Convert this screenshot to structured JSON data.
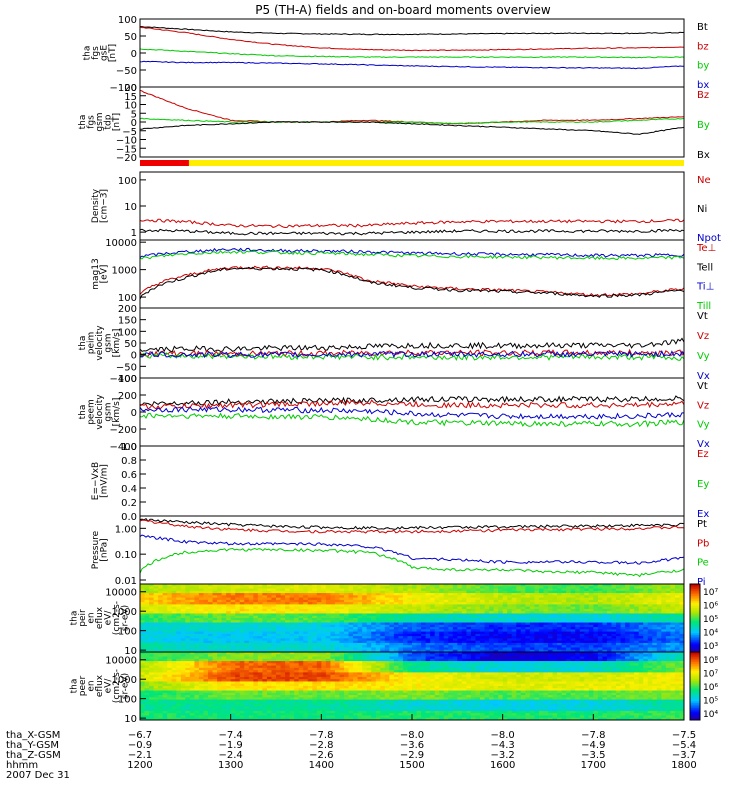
{
  "title": "P5 (TH-A) fields and on-board moments overview",
  "chart_data": [
    {
      "panel": "fgs_gse",
      "type": "line",
      "ylabel": [
        "tha",
        "fgs",
        "gsE",
        "[nT]"
      ],
      "yticks": [
        "100",
        "50",
        "0",
        "−50",
        "−100"
      ],
      "ylim": [
        -100,
        100
      ],
      "scale": "linear",
      "series": [
        {
          "name": "Bt",
          "color": "#000000",
          "values": [
            78,
            70,
            62,
            58,
            56,
            55,
            55,
            56,
            57,
            58,
            58,
            58,
            60
          ]
        },
        {
          "name": "bz",
          "color": "#cc0000",
          "values": [
            76,
            60,
            40,
            25,
            15,
            10,
            8,
            8,
            10,
            12,
            14,
            15,
            18
          ]
        },
        {
          "name": "by",
          "color": "#00cc00",
          "values": [
            12,
            5,
            -2,
            -8,
            -10,
            -12,
            -12,
            -12,
            -12,
            -12,
            -12,
            -13,
            -12
          ]
        },
        {
          "name": "bx",
          "color": "#0000cc",
          "values": [
            -25,
            -28,
            -28,
            -30,
            -32,
            -35,
            -38,
            -40,
            -42,
            -43,
            -44,
            -45,
            -38
          ]
        }
      ]
    },
    {
      "panel": "fgs_gsm_tdp",
      "type": "line",
      "ylabel": [
        "tha",
        "fgs",
        "gsm",
        "tdp",
        "[nT]"
      ],
      "yticks": [
        "20",
        "15",
        "10",
        "5",
        "0",
        "−5",
        "−10",
        "−15",
        "−20"
      ],
      "ylim": [
        -20,
        20
      ],
      "scale": "linear",
      "series": [
        {
          "name": "Bz",
          "color": "#cc0000",
          "values": [
            18,
            8,
            1,
            0,
            0,
            1,
            0,
            -1,
            0,
            1,
            1,
            2,
            3
          ]
        },
        {
          "name": "By",
          "color": "#00cc00",
          "values": [
            2,
            1,
            0,
            0,
            0,
            0,
            0,
            -1,
            0,
            0,
            0,
            1,
            2
          ]
        },
        {
          "name": "Bx",
          "color": "#000000",
          "values": [
            -4,
            -2,
            -1,
            0,
            0,
            0,
            -1,
            -2,
            -3,
            -4,
            -5,
            -7,
            -3
          ]
        }
      ]
    },
    {
      "panel": "density",
      "type": "line",
      "ylabel": [
        "Density",
        "[cm−3]"
      ],
      "yticks": [
        "100",
        "10",
        "1"
      ],
      "ylim": [
        0.5,
        200
      ],
      "scale": "log",
      "series": [
        {
          "name": "Ne",
          "color": "#cc0000",
          "values": [
            3,
            2.5,
            1.8,
            1.7,
            1.8,
            1.8,
            2.2,
            2.5,
            2.6,
            2.6,
            2.6,
            2.6,
            2.8
          ]
        },
        {
          "name": "Ni",
          "color": "#000000",
          "values": [
            1.2,
            1.1,
            0.9,
            0.9,
            0.9,
            0.9,
            1.0,
            1.1,
            1.1,
            1.1,
            1.1,
            1.1,
            1.2
          ]
        },
        {
          "name": "Npot",
          "color": "#0000cc",
          "values": []
        }
      ]
    },
    {
      "panel": "temperature",
      "type": "line",
      "ylabel": [
        "mag13",
        "[eV]"
      ],
      "yticks": [
        "10000",
        "1000",
        "100"
      ],
      "ylim": [
        40,
        12000
      ],
      "scale": "log",
      "series": [
        {
          "name": "Te⊥",
          "color": "#cc0000",
          "values": [
            120,
            600,
            1200,
            1200,
            1100,
            400,
            250,
            200,
            180,
            150,
            120,
            130,
            200
          ]
        },
        {
          "name": "Tell",
          "color": "#000000",
          "values": [
            90,
            500,
            1100,
            1100,
            1000,
            350,
            220,
            180,
            160,
            140,
            110,
            120,
            180
          ]
        },
        {
          "name": "Ti⊥",
          "color": "#0000cc",
          "values": [
            3000,
            4500,
            5500,
            5000,
            4800,
            4500,
            4000,
            3800,
            3600,
            3500,
            3300,
            3300,
            3500
          ]
        },
        {
          "name": "Till",
          "color": "#00cc00",
          "values": [
            2500,
            3800,
            4500,
            4200,
            4000,
            3600,
            3200,
            3000,
            2900,
            2800,
            2600,
            2600,
            2800
          ]
        }
      ]
    },
    {
      "panel": "peim_velocity",
      "type": "line",
      "ylabel": [
        "tha",
        "peim",
        "velocity",
        "gsm",
        "[km/s]"
      ],
      "yticks": [
        "200",
        "150",
        "100",
        "50",
        "0",
        "−50",
        "−100"
      ],
      "ylim": [
        -100,
        200
      ],
      "scale": "linear",
      "series": [
        {
          "name": "Vt",
          "color": "#000000",
          "values": [
            20,
            25,
            25,
            28,
            30,
            35,
            40,
            40,
            38,
            40,
            40,
            40,
            60
          ]
        },
        {
          "name": "Vz",
          "color": "#cc0000",
          "values": [
            5,
            5,
            3,
            5,
            5,
            8,
            10,
            8,
            8,
            8,
            8,
            8,
            10
          ]
        },
        {
          "name": "Vy",
          "color": "#00cc00",
          "values": [
            -5,
            -5,
            -5,
            -8,
            -8,
            -10,
            -10,
            -12,
            -10,
            -10,
            -10,
            -10,
            -15
          ]
        },
        {
          "name": "Vx",
          "color": "#0000cc",
          "values": [
            0,
            0,
            0,
            0,
            0,
            2,
            2,
            2,
            2,
            2,
            2,
            2,
            5
          ]
        }
      ]
    },
    {
      "panel": "peem_velocity",
      "type": "line",
      "ylabel": [
        "tha",
        "peem",
        "velocity",
        "gsm",
        "[km/s]"
      ],
      "yticks": [
        "400",
        "200",
        "0",
        "−200",
        "−400"
      ],
      "ylim": [
        -400,
        400
      ],
      "scale": "linear",
      "series": [
        {
          "name": "Vt",
          "color": "#000000",
          "values": [
            90,
            110,
            120,
            125,
            130,
            140,
            150,
            150,
            150,
            150,
            150,
            150,
            160
          ]
        },
        {
          "name": "Vz",
          "color": "#cc0000",
          "values": [
            60,
            70,
            80,
            90,
            100,
            110,
            90,
            80,
            80,
            80,
            80,
            80,
            100
          ]
        },
        {
          "name": "Vy",
          "color": "#00cc00",
          "values": [
            -40,
            -45,
            -50,
            -55,
            -60,
            -80,
            -120,
            -130,
            -135,
            -140,
            -140,
            -140,
            -120
          ]
        },
        {
          "name": "Vx",
          "color": "#0000cc",
          "values": [
            30,
            30,
            30,
            25,
            20,
            10,
            -20,
            -40,
            -50,
            -50,
            -50,
            -50,
            -30
          ]
        }
      ]
    },
    {
      "panel": "efield",
      "type": "line",
      "ylabel": [
        "E=−VxB",
        "[mV/m]"
      ],
      "yticks": [
        "1.0",
        "0.8",
        "0.6",
        "0.4",
        "0.2",
        "0.0"
      ],
      "ylim": [
        0,
        1
      ],
      "scale": "linear",
      "series": [
        {
          "name": "Ez",
          "color": "#cc0000",
          "values": []
        },
        {
          "name": "Ey",
          "color": "#00cc00",
          "values": []
        },
        {
          "name": "Ex",
          "color": "#0000cc",
          "values": []
        }
      ]
    },
    {
      "panel": "pressure",
      "type": "line",
      "ylabel": [
        "Pressure",
        "[nPa]"
      ],
      "yticks": [
        "1.00",
        "0.10",
        "0.01"
      ],
      "ylim": [
        0.007,
        3
      ],
      "scale": "log",
      "series": [
        {
          "name": "Pt",
          "color": "#000000",
          "values": [
            2.2,
            1.7,
            1.4,
            1.2,
            1.1,
            1.05,
            1.05,
            1.1,
            1.15,
            1.2,
            1.25,
            1.3,
            1.4
          ]
        },
        {
          "name": "Pb",
          "color": "#cc0000",
          "values": [
            2.0,
            1.2,
            0.9,
            0.8,
            0.75,
            0.75,
            0.75,
            0.8,
            0.85,
            0.9,
            0.95,
            1.0,
            1.1
          ]
        },
        {
          "name": "Pe",
          "color": "#00cc00",
          "values": [
            0.02,
            0.12,
            0.15,
            0.15,
            0.14,
            0.12,
            0.03,
            0.025,
            0.025,
            0.02,
            0.02,
            0.015,
            0.025
          ]
        },
        {
          "name": "Pi",
          "color": "#0000cc",
          "values": [
            0.5,
            0.3,
            0.25,
            0.25,
            0.25,
            0.2,
            0.07,
            0.06,
            0.05,
            0.05,
            0.05,
            0.045,
            0.07
          ]
        }
      ]
    },
    {
      "panel": "peir_spectrogram",
      "type": "heatmap",
      "ylabel": [
        "tha",
        "peir",
        "en",
        "eflux",
        "eV/",
        "(cm2-s-",
        "sr-eV)"
      ],
      "yticks": [
        "10000",
        "1000",
        "100",
        "10"
      ],
      "ylim": [
        8,
        25000
      ],
      "scale": "log",
      "colorbar": {
        "ticks": [
          "10⁷",
          "10⁶",
          "10⁵",
          "10⁴",
          "10³"
        ],
        "range_exp": [
          2.7,
          7.2
        ]
      },
      "energies_eV": [
        15000,
        5000,
        1500,
        500,
        150,
        50,
        15
      ],
      "times_hhmm": [
        "1200",
        "1300",
        "1400",
        "1500",
        "1600",
        "1700",
        "1800"
      ],
      "log_eflux": [
        [
          5.4,
          5.6,
          5.7,
          5.4,
          5.0,
          4.9,
          5.3
        ],
        [
          6.1,
          6.5,
          6.5,
          5.9,
          5.5,
          5.4,
          5.8
        ],
        [
          5.6,
          6.0,
          5.9,
          5.5,
          5.2,
          5.1,
          5.5
        ],
        [
          4.9,
          5.1,
          5.0,
          4.5,
          4.3,
          4.2,
          4.6
        ],
        [
          4.3,
          4.3,
          4.2,
          3.6,
          3.4,
          3.4,
          3.9
        ],
        [
          4.2,
          4.1,
          4.1,
          3.4,
          3.2,
          3.2,
          3.7
        ],
        [
          4.5,
          4.3,
          4.3,
          3.7,
          3.5,
          3.5,
          3.9
        ]
      ]
    },
    {
      "panel": "peer_spectrogram",
      "type": "heatmap",
      "ylabel": [
        "tha",
        "peer",
        "en",
        "eflux",
        "eV/",
        "(cm2-s-",
        "sr-eV)"
      ],
      "yticks": [
        "10000",
        "1000",
        "100",
        "10"
      ],
      "ylim": [
        8,
        25000
      ],
      "scale": "log",
      "colorbar": {
        "ticks": [
          "10⁸",
          "10⁷",
          "10⁶",
          "10⁵",
          "10⁴"
        ],
        "range_exp": [
          3.7,
          8.2
        ]
      },
      "energies_eV": [
        15000,
        5000,
        1500,
        500,
        150,
        50,
        15
      ],
      "times_hhmm": [
        "1200",
        "1300",
        "1400",
        "1500",
        "1600",
        "1700",
        "1800"
      ],
      "log_eflux": [
        [
          5.8,
          6.2,
          6.3,
          4.6,
          4.0,
          4.2,
          5.5
        ],
        [
          6.4,
          7.6,
          7.7,
          5.6,
          5.2,
          5.3,
          6.2
        ],
        [
          6.6,
          7.8,
          7.8,
          6.9,
          6.6,
          6.6,
          6.9
        ],
        [
          6.2,
          7.0,
          7.0,
          6.9,
          6.7,
          6.8,
          6.8
        ],
        [
          5.8,
          6.1,
          6.1,
          6.2,
          6.0,
          6.0,
          6.2
        ],
        [
          5.6,
          5.6,
          5.6,
          5.3,
          5.2,
          5.2,
          5.6
        ],
        [
          5.8,
          5.7,
          5.7,
          5.8,
          5.8,
          5.8,
          5.9
        ]
      ]
    }
  ],
  "mode_bar": {
    "segments": [
      {
        "color": "#ee0000",
        "fraction": 0.09
      },
      {
        "color": "#ffee00",
        "fraction": 0.91
      }
    ]
  },
  "xaxis": {
    "rows": [
      {
        "label": "tha_X-GSM",
        "values": [
          "−6.7",
          "−7.4",
          "−7.8",
          "−8.0",
          "−8.0",
          "−7.8",
          "−7.5"
        ]
      },
      {
        "label": "tha_Y-GSM",
        "values": [
          "−0.9",
          "−1.9",
          "−2.8",
          "−3.6",
          "−4.3",
          "−4.9",
          "−5.4"
        ]
      },
      {
        "label": "tha_Z-GSM",
        "values": [
          "−2.1",
          "−2.4",
          "−2.6",
          "−2.9",
          "−3.2",
          "−3.5",
          "−3.7"
        ]
      },
      {
        "label": "hhmm",
        "values": [
          "1200",
          "1300",
          "1400",
          "1500",
          "1600",
          "1700",
          "1800"
        ]
      }
    ],
    "date": "2007 Dec 31"
  }
}
